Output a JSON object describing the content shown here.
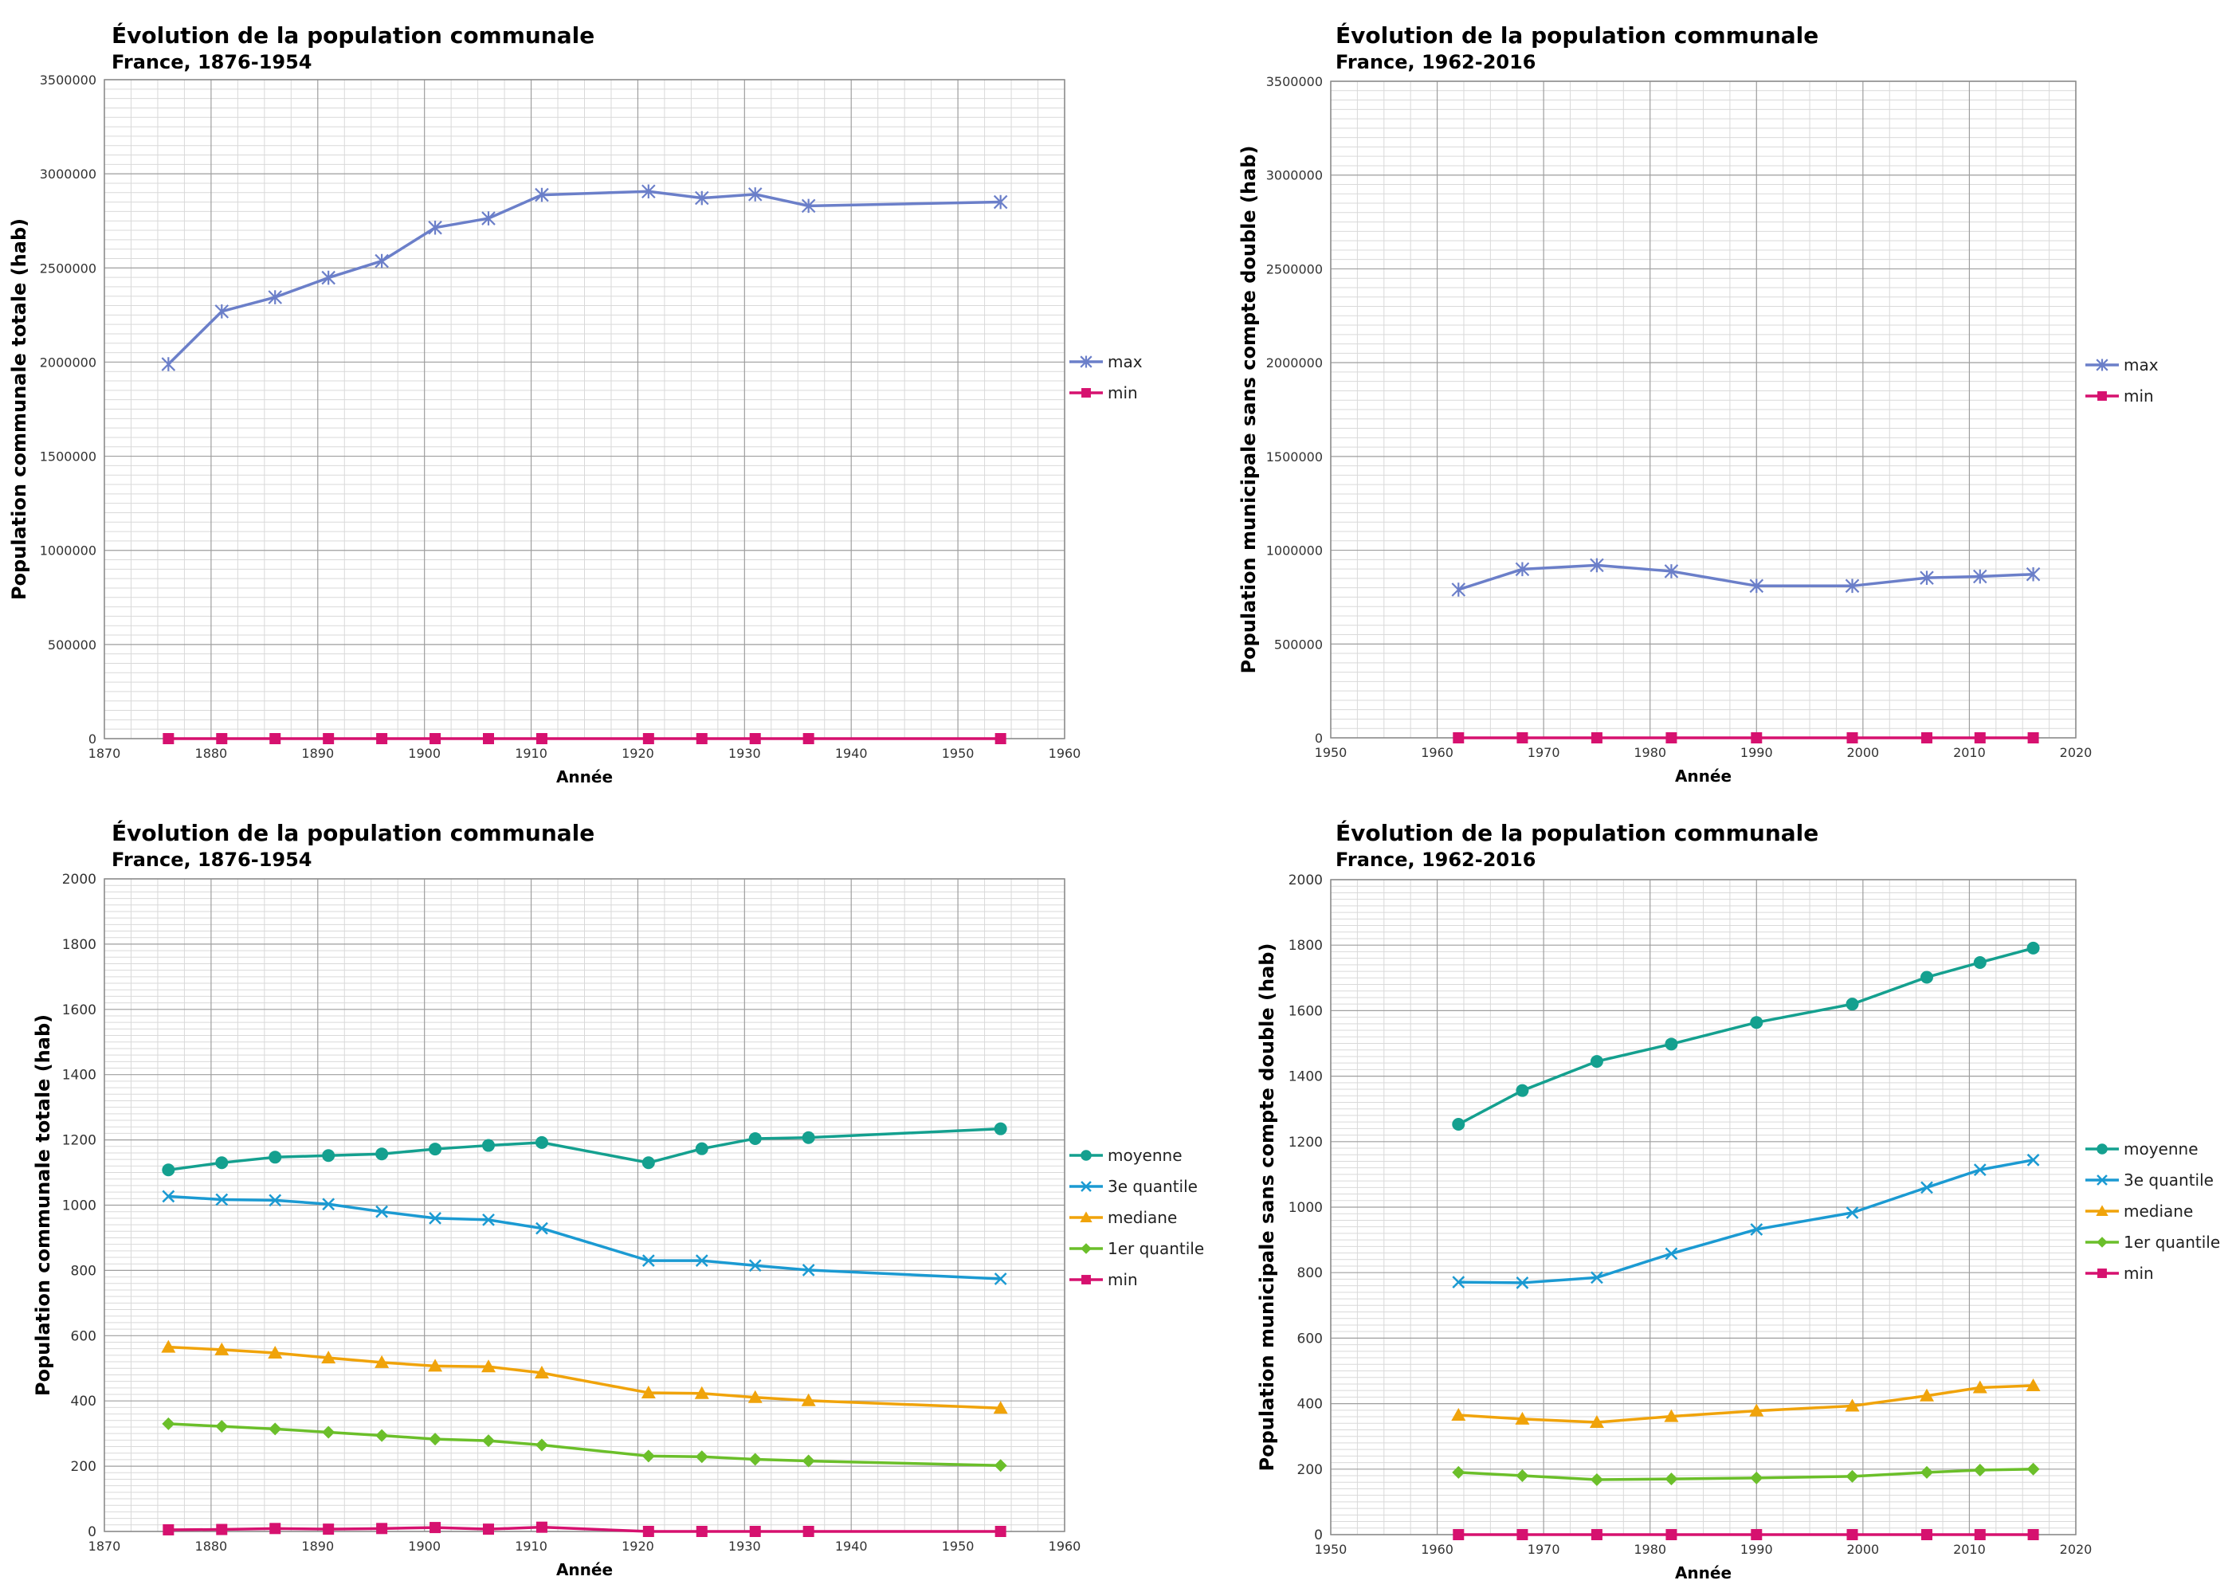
{
  "chart_data": [
    {
      "type": "line",
      "title": "Évolution de la population communale",
      "subtitle": "France, 1876-1954",
      "xlabel": "Année",
      "ylabel": "Population communale totale (hab)",
      "xlim": [
        1870,
        1960
      ],
      "ylim": [
        0,
        3500000
      ],
      "xticks": [
        1870,
        1880,
        1890,
        1900,
        1910,
        1920,
        1930,
        1940,
        1950,
        1960
      ],
      "yticks": [
        0,
        500000,
        1000000,
        1500000,
        2000000,
        2500000,
        3000000,
        3500000
      ],
      "grid": true,
      "legend_position": "right",
      "x": [
        1876,
        1881,
        1886,
        1891,
        1896,
        1901,
        1906,
        1911,
        1921,
        1926,
        1931,
        1936,
        1954
      ],
      "series": [
        {
          "name": "max",
          "color": "#6B7FC9",
          "marker": "star",
          "values": [
            1988806,
            2269023,
            2344550,
            2447957,
            2536834,
            2714068,
            2763393,
            2888107,
            2906472,
            2871429,
            2891020,
            2829746,
            2850189
          ]
        },
        {
          "name": "min",
          "color": "#D6116F",
          "marker": "square",
          "values": [
            5,
            6,
            9,
            7,
            9,
            12,
            7,
            13,
            0,
            0,
            0,
            0,
            0
          ]
        }
      ]
    },
    {
      "type": "line",
      "title": "Évolution de la population communale",
      "subtitle": "France, 1962-2016",
      "xlabel": "Année",
      "ylabel": "Population  municipale sans compte double (hab)",
      "xlim": [
        1950,
        2020
      ],
      "ylim": [
        0,
        3500000
      ],
      "xticks": [
        1950,
        1960,
        1970,
        1980,
        1990,
        2000,
        2010,
        2020
      ],
      "yticks": [
        0,
        500000,
        1000000,
        1500000,
        2000000,
        2500000,
        3000000,
        3500000
      ],
      "grid": true,
      "legend_position": "right",
      "x": [
        1962,
        1968,
        1975,
        1982,
        1990,
        1999,
        2006,
        2011,
        2016
      ],
      "series": [
        {
          "name": "max",
          "color": "#6B7FC9",
          "marker": "star",
          "values": [
            790000,
            899000,
            920000,
            888000,
            810000,
            810000,
            853000,
            860000,
            872000
          ]
        },
        {
          "name": "min",
          "color": "#D6116F",
          "marker": "square",
          "values": [
            0,
            0,
            0,
            0,
            0,
            0,
            0,
            0,
            0
          ]
        }
      ]
    },
    {
      "type": "line",
      "title": "Évolution de la population communale",
      "subtitle": "France, 1876-1954",
      "xlabel": "Année",
      "ylabel": "Population communale totale (hab)",
      "xlim": [
        1870,
        1960
      ],
      "ylim": [
        0,
        2000
      ],
      "xticks": [
        1870,
        1880,
        1890,
        1900,
        1910,
        1920,
        1930,
        1940,
        1950,
        1960
      ],
      "yticks": [
        0,
        200,
        400,
        600,
        800,
        1000,
        1200,
        1400,
        1600,
        1800,
        2000
      ],
      "grid": true,
      "legend_position": "right",
      "x": [
        1876,
        1881,
        1886,
        1891,
        1896,
        1901,
        1906,
        1911,
        1921,
        1926,
        1931,
        1936,
        1954
      ],
      "series": [
        {
          "name": "moyenne",
          "color": "#14A08F",
          "marker": "circle",
          "values": [
            1108,
            1130,
            1147,
            1152,
            1157,
            1172,
            1183,
            1192,
            1130,
            1173,
            1204,
            1207,
            1234
          ]
        },
        {
          "name": "3e quantile",
          "color": "#1B9AD2",
          "marker": "x",
          "values": [
            1027,
            1017,
            1015,
            1003,
            980,
            960,
            955,
            929,
            830,
            830,
            815,
            801,
            774
          ]
        },
        {
          "name": "mediane",
          "color": "#F0A30A",
          "marker": "triangle",
          "values": [
            565,
            557,
            547,
            532,
            518,
            507,
            505,
            486,
            425,
            423,
            411,
            401,
            378
          ]
        },
        {
          "name": "1er quantile",
          "color": "#6BBF2A",
          "marker": "diamond",
          "values": [
            330,
            322,
            314,
            304,
            294,
            283,
            278,
            265,
            231,
            229,
            221,
            216,
            202
          ]
        },
        {
          "name": "min",
          "color": "#D6116F",
          "marker": "square",
          "values": [
            5,
            6,
            9,
            7,
            9,
            12,
            7,
            13,
            0,
            0,
            0,
            0,
            0
          ]
        }
      ]
    },
    {
      "type": "line",
      "title": "Évolution de la population communale",
      "subtitle": "France, 1962-2016",
      "xlabel": "Année",
      "ylabel": "Population municipale  sans compte double (hab)",
      "xlim": [
        1950,
        2020
      ],
      "ylim": [
        0,
        2000
      ],
      "xticks": [
        1950,
        1960,
        1970,
        1980,
        1990,
        2000,
        2010,
        2020
      ],
      "yticks": [
        0,
        200,
        400,
        600,
        800,
        1000,
        1200,
        1400,
        1600,
        1800,
        2000
      ],
      "grid": true,
      "legend_position": "right",
      "x": [
        1962,
        1968,
        1975,
        1982,
        1990,
        1999,
        2006,
        2011,
        2016
      ],
      "series": [
        {
          "name": "moyenne",
          "color": "#14A08F",
          "marker": "circle",
          "values": [
            1253,
            1356,
            1445,
            1498,
            1564,
            1620,
            1702,
            1747,
            1791
          ]
        },
        {
          "name": "3e quantile",
          "color": "#1B9AD2",
          "marker": "x",
          "values": [
            771,
            769,
            785,
            858,
            932,
            983,
            1060,
            1114,
            1144
          ]
        },
        {
          "name": "mediane",
          "color": "#F0A30A",
          "marker": "triangle",
          "values": [
            365,
            353,
            343,
            361,
            378,
            393,
            424,
            449,
            455
          ]
        },
        {
          "name": "1er quantile",
          "color": "#6BBF2A",
          "marker": "diamond",
          "values": [
            190,
            180,
            168,
            170,
            173,
            178,
            190,
            197,
            200
          ]
        },
        {
          "name": "min",
          "color": "#D6116F",
          "marker": "square",
          "values": [
            0,
            0,
            0,
            0,
            0,
            0,
            0,
            0,
            0
          ]
        }
      ]
    }
  ]
}
